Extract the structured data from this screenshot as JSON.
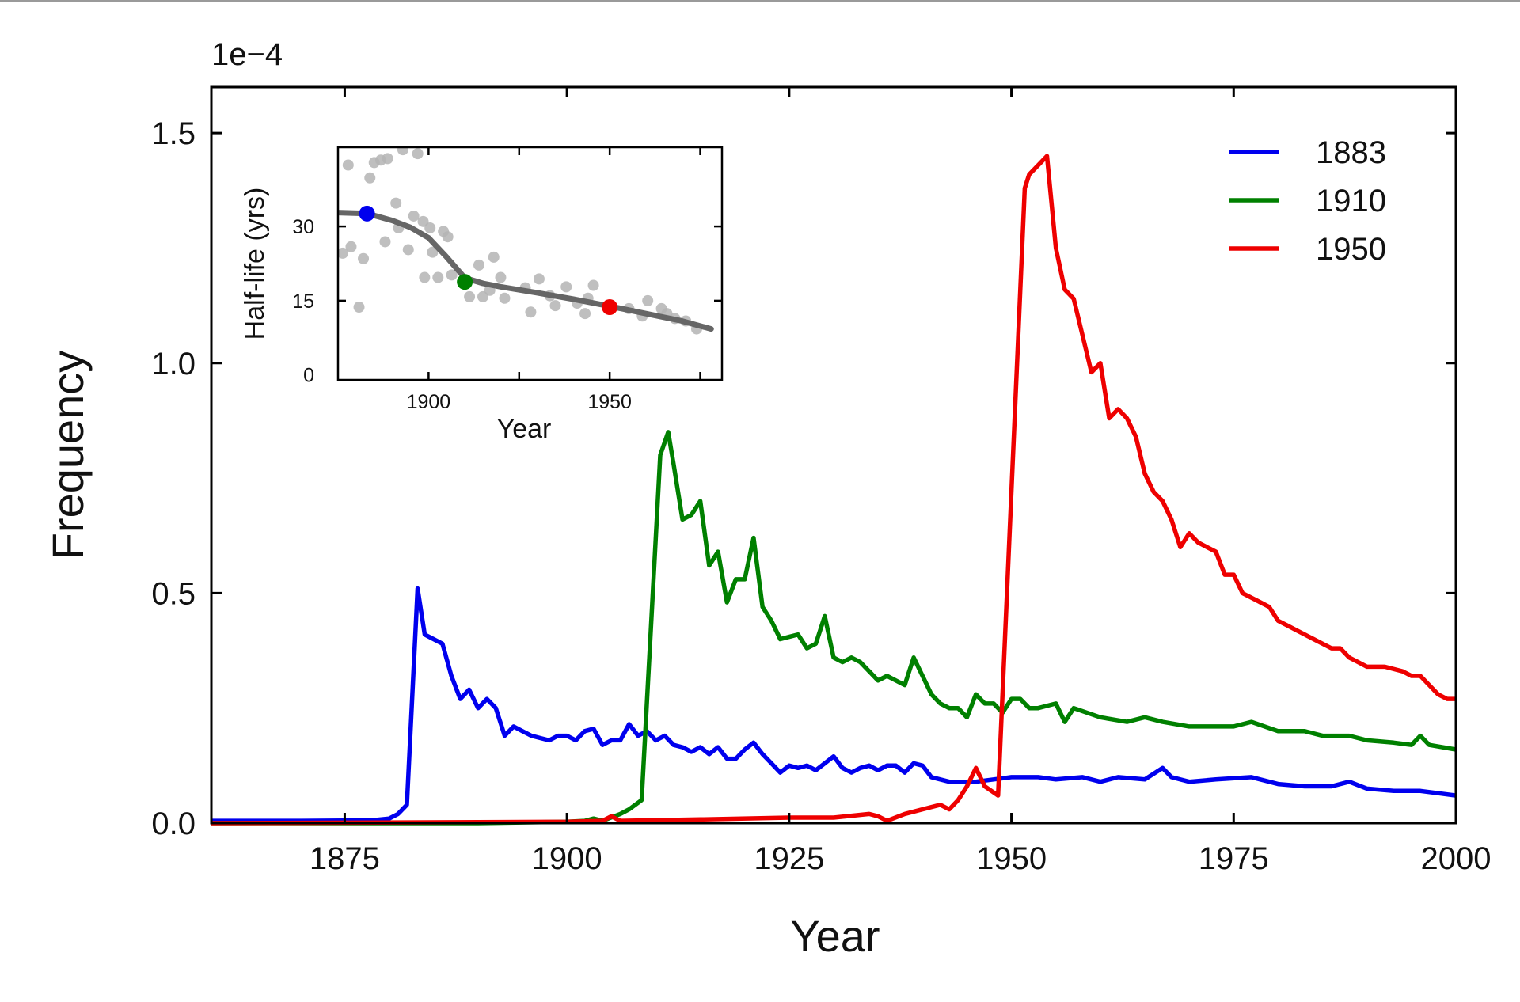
{
  "chart_data": [
    {
      "type": "line",
      "title": "",
      "xlabel": "Year",
      "ylabel": "Frequency",
      "y_multiplier": "1e−4",
      "xlim": [
        1860,
        2000
      ],
      "ylim": [
        0,
        1.6
      ],
      "xticks": [
        1875,
        1900,
        1925,
        1950,
        1975,
        2000
      ],
      "xtick_labels": [
        "1875",
        "1900",
        "1925",
        "1950",
        "1975",
        "2000"
      ],
      "yticks": [
        0,
        0.5,
        1.0,
        1.5
      ],
      "ytick_labels": [
        "0.0",
        "0.5",
        "1.0",
        "1.5"
      ],
      "grid": false,
      "legend_position": "top-right",
      "series": [
        {
          "name": "1883",
          "color": "#0000ee",
          "x": [
            1860,
            1870,
            1878,
            1880,
            1881,
            1882,
            1883.2,
            1884,
            1885,
            1886,
            1887,
            1888,
            1889,
            1890,
            1891,
            1892,
            1893,
            1894,
            1895,
            1896,
            1897,
            1898,
            1899,
            1900,
            1901,
            1902,
            1903,
            1904,
            1905,
            1906,
            1907,
            1908,
            1909,
            1910,
            1911,
            1912,
            1913,
            1914,
            1915,
            1916,
            1917,
            1918,
            1919,
            1920,
            1921,
            1922,
            1923,
            1924,
            1925,
            1926,
            1927,
            1928,
            1929,
            1930,
            1931,
            1932,
            1933,
            1934,
            1935,
            1936,
            1937,
            1938,
            1939,
            1940,
            1941,
            1943,
            1946,
            1950,
            1953,
            1955,
            1958,
            1960,
            1962,
            1965,
            1967,
            1968,
            1970,
            1973,
            1977,
            1980,
            1983,
            1986,
            1988,
            1990,
            1993,
            1996,
            1998,
            2000
          ],
          "y": [
            0.005,
            0.005,
            0.006,
            0.01,
            0.02,
            0.04,
            0.51,
            0.41,
            0.4,
            0.39,
            0.32,
            0.27,
            0.29,
            0.25,
            0.27,
            0.25,
            0.19,
            0.21,
            0.2,
            0.19,
            0.185,
            0.18,
            0.19,
            0.19,
            0.18,
            0.2,
            0.205,
            0.17,
            0.18,
            0.18,
            0.215,
            0.19,
            0.2,
            0.18,
            0.19,
            0.17,
            0.165,
            0.155,
            0.165,
            0.15,
            0.165,
            0.14,
            0.14,
            0.16,
            0.175,
            0.15,
            0.13,
            0.11,
            0.125,
            0.12,
            0.125,
            0.115,
            0.13,
            0.145,
            0.12,
            0.11,
            0.12,
            0.125,
            0.115,
            0.125,
            0.125,
            0.11,
            0.13,
            0.125,
            0.1,
            0.09,
            0.09,
            0.1,
            0.1,
            0.095,
            0.1,
            0.09,
            0.1,
            0.095,
            0.12,
            0.1,
            0.09,
            0.095,
            0.1,
            0.085,
            0.08,
            0.08,
            0.09,
            0.075,
            0.07,
            0.07,
            0.065,
            0.06
          ]
        },
        {
          "name": "1910",
          "color": "#008000",
          "x": [
            1860,
            1890,
            1900,
            1902,
            1903,
            1904,
            1906,
            1907,
            1908.4,
            1910.5,
            1911.4,
            1912,
            1913,
            1914,
            1915,
            1916,
            1917,
            1918,
            1919,
            1920,
            1921,
            1922,
            1923,
            1924,
            1925,
            1926,
            1927,
            1928,
            1929,
            1930,
            1931,
            1932,
            1933,
            1934,
            1935,
            1936,
            1937,
            1938,
            1939,
            1940,
            1941,
            1942,
            1943,
            1944,
            1945,
            1946,
            1947,
            1948,
            1949,
            1950,
            1951,
            1952,
            1953,
            1955,
            1956,
            1957,
            1960,
            1963,
            1965,
            1967,
            1970,
            1972,
            1975,
            1977,
            1980,
            1983,
            1985,
            1988,
            1990,
            1993,
            1995,
            1996,
            1997,
            2000
          ],
          "y": [
            0,
            0,
            0.003,
            0.005,
            0.01,
            0.005,
            0.02,
            0.03,
            0.05,
            0.8,
            0.85,
            0.78,
            0.66,
            0.67,
            0.7,
            0.56,
            0.59,
            0.48,
            0.53,
            0.53,
            0.62,
            0.47,
            0.44,
            0.4,
            0.405,
            0.41,
            0.38,
            0.39,
            0.45,
            0.36,
            0.35,
            0.36,
            0.35,
            0.33,
            0.31,
            0.32,
            0.31,
            0.3,
            0.36,
            0.32,
            0.28,
            0.26,
            0.25,
            0.25,
            0.23,
            0.28,
            0.26,
            0.26,
            0.24,
            0.27,
            0.27,
            0.25,
            0.25,
            0.26,
            0.22,
            0.25,
            0.23,
            0.22,
            0.23,
            0.22,
            0.21,
            0.21,
            0.21,
            0.22,
            0.2,
            0.2,
            0.19,
            0.19,
            0.18,
            0.175,
            0.17,
            0.19,
            0.17,
            0.16
          ]
        },
        {
          "name": "1950",
          "color": "#ee0000",
          "x": [
            1860,
            1900,
            1904,
            1905,
            1906,
            1915,
            1925,
            1930,
            1934,
            1935,
            1936,
            1938,
            1940,
            1942,
            1943,
            1944,
            1945,
            1946,
            1947,
            1948.5,
            1951.5,
            1952,
            1953,
            1954,
            1955,
            1956,
            1957,
            1958,
            1959,
            1960,
            1961,
            1962,
            1963,
            1964,
            1965,
            1966,
            1967,
            1968,
            1969,
            1970,
            1971,
            1972,
            1973,
            1974,
            1975,
            1976,
            1977,
            1978,
            1979,
            1980,
            1981,
            1982,
            1983,
            1984,
            1985,
            1986,
            1987,
            1988,
            1989,
            1990,
            1992,
            1994,
            1995,
            1996,
            1997,
            1998,
            1999,
            2000
          ],
          "y": [
            0,
            0.003,
            0.005,
            0.015,
            0.005,
            0.008,
            0.012,
            0.012,
            0.02,
            0.015,
            0.005,
            0.02,
            0.03,
            0.04,
            0.03,
            0.05,
            0.08,
            0.12,
            0.08,
            0.06,
            1.38,
            1.41,
            1.43,
            1.45,
            1.25,
            1.16,
            1.14,
            1.06,
            0.98,
            1.0,
            0.88,
            0.9,
            0.88,
            0.84,
            0.76,
            0.72,
            0.7,
            0.66,
            0.6,
            0.63,
            0.61,
            0.6,
            0.59,
            0.54,
            0.54,
            0.5,
            0.49,
            0.48,
            0.47,
            0.44,
            0.43,
            0.42,
            0.41,
            0.4,
            0.39,
            0.38,
            0.38,
            0.36,
            0.35,
            0.34,
            0.34,
            0.33,
            0.32,
            0.32,
            0.3,
            0.28,
            0.27,
            0.27
          ]
        }
      ]
    },
    {
      "type": "scatter",
      "title": "",
      "xlabel": "Year",
      "ylabel": "Half-life (yrs)",
      "xlim": [
        1875,
        1981
      ],
      "ylim": [
        -1,
        46
      ],
      "xticks": [
        1900,
        1925,
        1950,
        1975
      ],
      "xtick_labels": [
        "1900",
        "",
        "1950",
        ""
      ],
      "yticks": [
        0,
        15,
        30
      ],
      "ytick_labels": [
        "0",
        "15",
        "30"
      ],
      "grid": false,
      "point_color": "#b4b4b4",
      "points": {
        "x": [
          1877.8,
          1883.8,
          1885,
          1886.8,
          1888.7,
          1892.9,
          1897,
          1891,
          1891.7,
          1888,
          1878.6,
          1876.3,
          1882,
          1880.8,
          1895.9,
          1898.5,
          1900.4,
          1894.4,
          1901.1,
          1904.1,
          1905.3,
          1898.9,
          1902.6,
          1906.4,
          1913.9,
          1918,
          1911.3,
          1915,
          1916.9,
          1919.9,
          1921,
          1926.7,
          1930.5,
          1928.2,
          1933.5,
          1935,
          1938,
          1941,
          1943.2,
          1945.5,
          1944,
          1955.3,
          1959,
          1960.5,
          1964.3,
          1965.8,
          1968,
          1971,
          1974
        ],
        "y": [
          42.4,
          39.8,
          42.9,
          43.4,
          43.7,
          45.5,
          44.7,
          34.7,
          29.7,
          26.9,
          25.9,
          24.6,
          23.5,
          13.7,
          32.1,
          31,
          29.7,
          25.3,
          24.8,
          29,
          27.9,
          19.7,
          19.7,
          20.2,
          22.2,
          23.8,
          15.8,
          15.8,
          17.1,
          19.7,
          15.5,
          17.6,
          19.4,
          12.7,
          16,
          14,
          17.8,
          14.5,
          12.4,
          18.1,
          15.5,
          13.4,
          11.9,
          15,
          13.4,
          12.4,
          11.4,
          10.9,
          9.3
        ]
      },
      "trend": {
        "color": "#666666",
        "x": [
          1875,
          1883,
          1890,
          1895,
          1900,
          1905,
          1910,
          1915,
          1920,
          1930,
          1940,
          1950,
          1960,
          1970,
          1978
        ],
        "y": [
          32.8,
          32.6,
          31.2,
          29.8,
          27.7,
          23.8,
          19.6,
          18.5,
          17.8,
          16.6,
          15.3,
          13.9,
          12.4,
          10.9,
          9.3
        ]
      },
      "highlights": [
        {
          "x": 1883,
          "y": 32.6,
          "color": "#0000ee"
        },
        {
          "x": 1910,
          "y": 18.8,
          "color": "#008000"
        },
        {
          "x": 1950,
          "y": 13.7,
          "color": "#ee0000"
        }
      ]
    }
  ]
}
